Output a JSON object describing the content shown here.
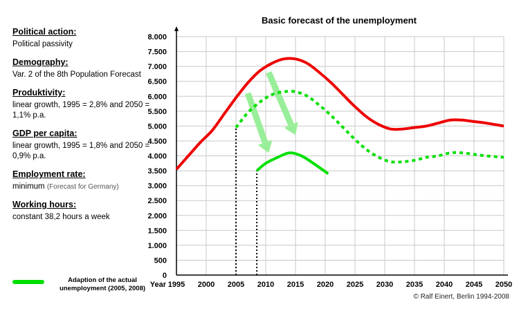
{
  "assumptions": {
    "political": {
      "heading": "Political action:",
      "text": "Political passivity"
    },
    "demography": {
      "heading": "Demography:",
      "text": "Var. 2 of the 8th Population Forecast"
    },
    "productivity": {
      "heading": "Produktivity:",
      "text": "linear growth, 1995 = 2,8% and 2050 = 1,1% p.a."
    },
    "gdp": {
      "heading": "GDP per capita:",
      "text": "linear growth, 1995 = 1,8% and 2050 = 0,9% p.a."
    },
    "employment": {
      "heading": "Employment rate:",
      "text": "minimum",
      "note": "(Forecast for Germany)"
    },
    "hours": {
      "heading": "Working hours:",
      "text": "constant 38,2 hours a week"
    }
  },
  "legend": {
    "label": "Adaption of the actual unemployment (2005, 2008)",
    "color": "#00e000"
  },
  "credit": "© Ralf Einert, Berlin 1994-2008",
  "chart_data": {
    "type": "line",
    "title": "Basic forecast of the unemployment",
    "xlabel": "Year",
    "ylabel": "",
    "xlim": [
      1995,
      2050
    ],
    "ylim": [
      0,
      8000
    ],
    "x_ticks": [
      1995,
      2000,
      2005,
      2010,
      2015,
      2020,
      2025,
      2030,
      2035,
      2040,
      2045,
      2050
    ],
    "x_tick_labels": [
      "1995",
      "2000",
      "2005",
      "2010",
      "2015",
      "2020",
      "2025",
      "2030",
      "2035",
      "2040",
      "2045",
      "2050"
    ],
    "y_ticks": [
      0,
      500,
      1000,
      1500,
      2000,
      2500,
      3000,
      3500,
      4000,
      4500,
      5000,
      5500,
      6000,
      6500,
      7000,
      7500,
      8000
    ],
    "y_tick_labels": [
      "0",
      "500",
      "1.000",
      "1.500",
      "2.000",
      "2.500",
      "3.000",
      "3.500",
      "4.000",
      "4.500",
      "5.000",
      "5.500",
      "6.000",
      "6.500",
      "7.000",
      "7.500",
      "8.000"
    ],
    "grid": true,
    "series": [
      {
        "color": "#ee0000",
        "style": "solid",
        "x": [
          1995,
          1997,
          1999,
          2001,
          2003,
          2005,
          2007,
          2009,
          2011,
          2013,
          2015,
          2017,
          2019,
          2021,
          2023,
          2025,
          2027,
          2029,
          2031,
          2033,
          2035,
          2037,
          2039,
          2041,
          2043,
          2045,
          2047,
          2050
        ],
        "y": [
          3550,
          4000,
          4450,
          4850,
          5400,
          5950,
          6450,
          6850,
          7100,
          7250,
          7250,
          7100,
          6800,
          6450,
          6050,
          5650,
          5300,
          5050,
          4900,
          4900,
          4950,
          5000,
          5100,
          5200,
          5200,
          5150,
          5100,
          5000
        ]
      },
      {
        "color": "#00e000",
        "style": "dotted",
        "x": [
          2005,
          2007,
          2009,
          2011,
          2013,
          2015,
          2017,
          2019,
          2021,
          2023,
          2025,
          2027,
          2029,
          2031,
          2033,
          2035,
          2037,
          2039,
          2041,
          2043,
          2045,
          2047,
          2050
        ],
        "y": [
          4950,
          5450,
          5800,
          6050,
          6150,
          6150,
          6000,
          5700,
          5350,
          4950,
          4550,
          4200,
          3950,
          3800,
          3800,
          3850,
          3950,
          4000,
          4100,
          4100,
          4050,
          4000,
          3950
        ]
      },
      {
        "color": "#00e000",
        "style": "solid",
        "x": [
          2008.5,
          2010,
          2012,
          2014,
          2016,
          2018,
          2020.5
        ],
        "y": [
          3500,
          3750,
          3950,
          4100,
          4000,
          3750,
          3400
        ]
      }
    ],
    "reference_lines": [
      {
        "x": 2005,
        "y_from": 0,
        "y_to": 4950,
        "style": "dotted",
        "color": "#000000"
      },
      {
        "x": 2008.5,
        "y_from": 0,
        "y_to": 3500,
        "style": "dotted",
        "color": "#000000"
      }
    ],
    "arrows": [
      {
        "from": [
          2007,
          6100
        ],
        "to": [
          2010.5,
          4100
        ],
        "color": "#99ee99"
      },
      {
        "from": [
          2010.5,
          6800
        ],
        "to": [
          2015,
          4700
        ],
        "color": "#99ee99"
      }
    ]
  }
}
